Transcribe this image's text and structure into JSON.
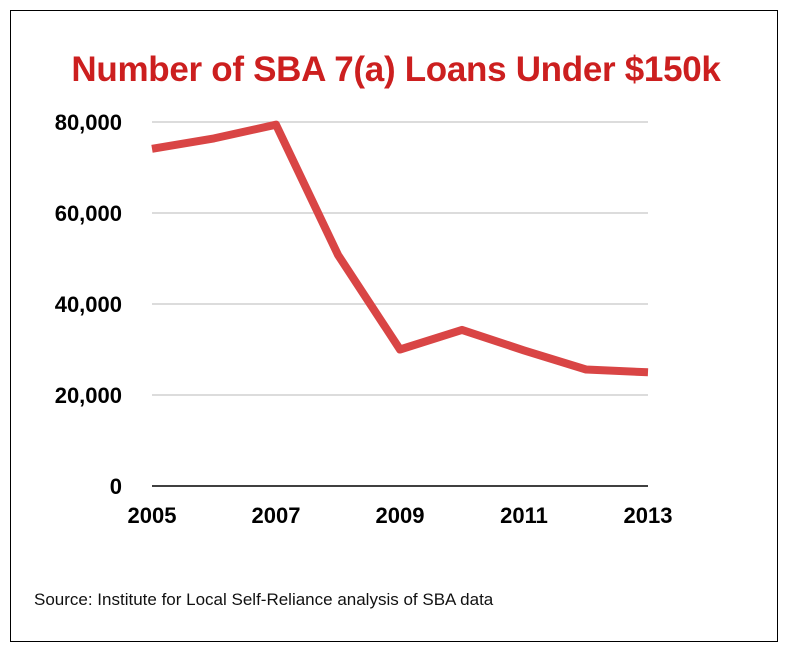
{
  "chart_data": {
    "type": "line",
    "title": "Number of SBA 7(a) Loans Under $150k",
    "source": "Source: Institute for Local Self-Reliance analysis of SBA data",
    "x": [
      2005,
      2006,
      2007,
      2008,
      2009,
      2010,
      2011,
      2012,
      2013
    ],
    "series": [
      {
        "values": [
          74100,
          76400,
          79400,
          50800,
          30000,
          34300,
          29800,
          25600,
          25000
        ]
      }
    ],
    "x_tick_labels": [
      "2005",
      "2007",
      "2009",
      "2011",
      "2013"
    ],
    "y_tick_values": [
      0,
      20000,
      40000,
      60000,
      80000
    ],
    "y_tick_labels": [
      "0",
      "20,000",
      "40,000",
      "60,000",
      "80,000"
    ],
    "xlabel": "",
    "ylabel": "",
    "ylim": [
      0,
      80000
    ],
    "xlim": [
      2005,
      2013
    ],
    "grid": true,
    "legend": "none",
    "line_color": "#d94545",
    "title_color": "#cc1f1f",
    "grid_color": "#c8c8c8"
  }
}
